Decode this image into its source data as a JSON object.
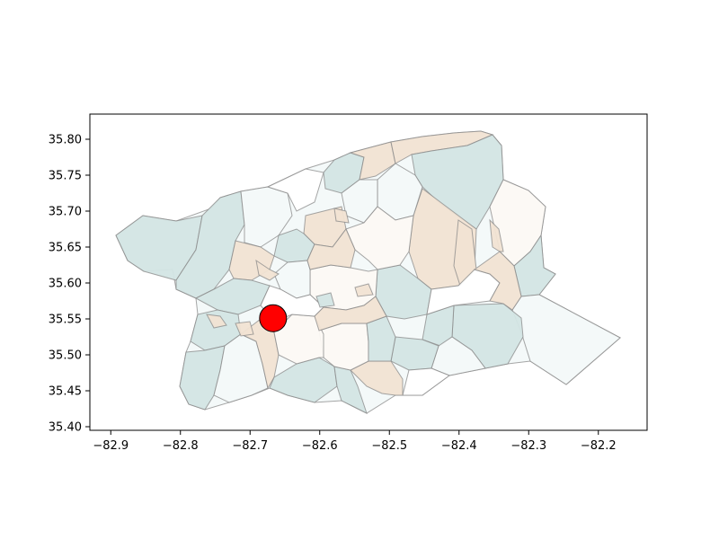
{
  "chart_data": {
    "type": "scatter",
    "xlim": [
      -82.93,
      -82.13
    ],
    "ylim": [
      35.395,
      35.835
    ],
    "x_ticks": [
      -82.9,
      -82.8,
      -82.7,
      -82.6,
      -82.5,
      -82.4,
      -82.3,
      -82.2
    ],
    "x_tick_labels": [
      "−82.9",
      "−82.8",
      "−82.7",
      "−82.6",
      "−82.5",
      "−82.4",
      "−82.3",
      "−82.2"
    ],
    "y_ticks": [
      35.4,
      35.45,
      35.5,
      35.55,
      35.6,
      35.65,
      35.7,
      35.75,
      35.8
    ],
    "y_tick_labels": [
      "35.40",
      "35.45",
      "35.50",
      "35.55",
      "35.60",
      "35.65",
      "35.70",
      "35.75",
      "35.80"
    ],
    "grid": false,
    "marker": {
      "x": -82.667,
      "y": 35.551,
      "color": "#ff0000",
      "edge_color": "#000000"
    },
    "region_colors": [
      "#d3e5e4",
      "#f1e3d3",
      "#f3f9f9",
      "#fcf9f4",
      "#ffffff"
    ],
    "region_edge_color": "#888888"
  }
}
